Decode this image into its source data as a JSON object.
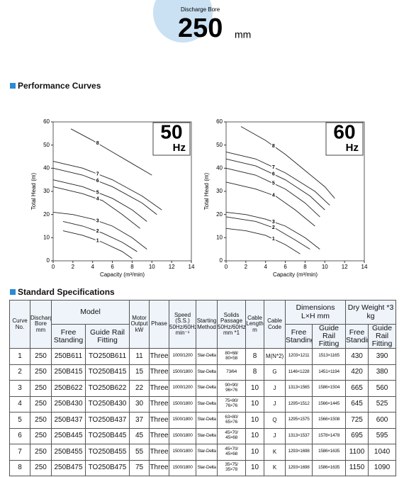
{
  "header": {
    "label": "Discharge Bore",
    "value": "250",
    "unit": "mm"
  },
  "performance_title": "Performance Curves",
  "chart_data": [
    {
      "type": "line",
      "title": "50",
      "subtitle": "Hz",
      "x_label": "Capacity (m³/min)",
      "y_label": "Total Head (m)",
      "xlim": [
        0,
        14
      ],
      "xticks": [
        0,
        2,
        4,
        6,
        8,
        10,
        12,
        14
      ],
      "ylim": [
        0,
        60
      ],
      "yticks": [
        0,
        10,
        20,
        30,
        40,
        50,
        60
      ],
      "color": "#222222",
      "series": [
        {
          "name": "1",
          "x": [
            1,
            3,
            5,
            7,
            8
          ],
          "values": [
            13,
            11,
            8,
            4,
            1
          ]
        },
        {
          "name": "2",
          "x": [
            1,
            3,
            5,
            7,
            8.5
          ],
          "values": [
            17,
            15,
            12,
            8,
            4
          ]
        },
        {
          "name": "3",
          "x": [
            0,
            2,
            4,
            6,
            8,
            9.5
          ],
          "values": [
            21,
            20,
            18,
            15,
            10,
            5
          ]
        },
        {
          "name": "4",
          "x": [
            0,
            3,
            5,
            7,
            8.8
          ],
          "values": [
            32,
            29,
            26,
            20,
            14
          ]
        },
        {
          "name": "5",
          "x": [
            0,
            3,
            6,
            8,
            9.5
          ],
          "values": [
            35,
            32,
            27,
            22,
            17
          ]
        },
        {
          "name": "6",
          "x": [
            0,
            3,
            6,
            9,
            10.5
          ],
          "values": [
            40,
            37,
            32,
            25,
            20
          ]
        },
        {
          "name": "7",
          "x": [
            0,
            3,
            6,
            9,
            11
          ],
          "values": [
            43,
            40,
            35,
            28,
            22
          ]
        },
        {
          "name": "8",
          "x": [
            1.8,
            4,
            6,
            8,
            10
          ],
          "values": [
            57,
            52,
            47,
            42,
            37
          ]
        }
      ]
    },
    {
      "type": "line",
      "title": "60",
      "subtitle": "Hz",
      "x_label": "Capacity (m³/min)",
      "y_label": "Total Head (m)",
      "xlim": [
        0,
        14
      ],
      "xticks": [
        0,
        2,
        4,
        6,
        8,
        10,
        12,
        14
      ],
      "ylim": [
        0,
        60
      ],
      "yticks": [
        0,
        10,
        20,
        30,
        40,
        50,
        60
      ],
      "color": "#222222",
      "series": [
        {
          "name": "1",
          "x": [
            0,
            2,
            4,
            6,
            7.5
          ],
          "values": [
            14,
            13,
            11,
            7,
            3
          ]
        },
        {
          "name": "2",
          "x": [
            0,
            3,
            5,
            7,
            8.5
          ],
          "values": [
            19,
            17,
            14,
            9,
            5
          ]
        },
        {
          "name": "3",
          "x": [
            0,
            2,
            4,
            6,
            8,
            9.5
          ],
          "values": [
            21,
            20,
            18,
            15,
            10,
            5
          ]
        },
        {
          "name": "4",
          "x": [
            0,
            3,
            5,
            7,
            9
          ],
          "values": [
            34,
            31,
            28,
            22,
            15
          ]
        },
        {
          "name": "5",
          "x": [
            0,
            3,
            6,
            8,
            9.5
          ],
          "values": [
            40,
            37,
            31,
            25,
            19
          ]
        },
        {
          "name": "6",
          "x": [
            0,
            3,
            6,
            8.5,
            10
          ],
          "values": [
            44,
            41,
            35,
            28,
            22
          ]
        },
        {
          "name": "7",
          "x": [
            0,
            3,
            6,
            9,
            10.5
          ],
          "values": [
            47,
            44,
            38,
            30,
            24
          ]
        },
        {
          "name": "8",
          "x": [
            1.5,
            4,
            6,
            8,
            10,
            11
          ],
          "values": [
            58,
            52,
            46,
            39,
            32,
            27
          ]
        }
      ]
    }
  ],
  "specs": {
    "title": "Standard Specifications",
    "header": [
      {
        "text": "Curve\nNo."
      },
      {
        "text": "Discharge\nBore\nmm"
      },
      {
        "text": "Model",
        "sub": [
          "Free\nStanding",
          "Guide Rail\nFitting"
        ]
      },
      {
        "text": "Motor\nOutput\nkW"
      },
      {
        "text": "Phase"
      },
      {
        "text": "Speed\n(S.S.)\n50Hz/60Hz\nmin⁻¹"
      },
      {
        "text": "Starting\nMethod"
      },
      {
        "text": "Solids\nPassage\n50Hz/60Hz\nmm *1"
      },
      {
        "text": "Cable\nLength\nm"
      },
      {
        "text": "Cable\nCode"
      },
      {
        "text": "Dimensions\nL×H  mm",
        "sub": [
          "Free\nStanding",
          "Guide Rail\nFitting"
        ]
      },
      {
        "text": "Dry Weight *3\nkg",
        "sub": [
          "Free\nStanding",
          "Guide Rail\nFitting"
        ]
      }
    ],
    "rows": [
      [
        "1",
        "250",
        "250B611",
        "TO250B611",
        "11",
        "Three",
        "1000/1200",
        "Star-Delta",
        "80×68/\n80×58",
        "8",
        "M(N*2)",
        "1203×1211",
        "1513×1165",
        "430",
        "390"
      ],
      [
        "2",
        "250",
        "250B415",
        "TO250B415",
        "15",
        "Three",
        "1500/1800",
        "Star-Delta",
        "73/64",
        "8",
        "G",
        "1146×1228",
        "1451×1194",
        "420",
        "380"
      ],
      [
        "3",
        "250",
        "250B622",
        "TO250B622",
        "22",
        "Three",
        "1000/1200",
        "Star-Delta",
        "90×90/\n96×76",
        "10",
        "J",
        "1313×1565",
        "1586×1504",
        "665",
        "560"
      ],
      [
        "4",
        "250",
        "250B430",
        "TO250B430",
        "30",
        "Three",
        "1500/1800",
        "Star-Delta",
        "75×80/\n76×76",
        "10",
        "J",
        "1295×1512",
        "1566×1445",
        "645",
        "525"
      ],
      [
        "5",
        "250",
        "250B437",
        "TO250B437",
        "37",
        "Three",
        "1500/1800",
        "Star-Delta",
        "63×80/\n65×76",
        "10",
        "Q",
        "1295×1575",
        "1566×1508",
        "725",
        "600"
      ],
      [
        "6",
        "250",
        "250B445",
        "TO250B445",
        "45",
        "Three",
        "1500/1800",
        "Star-Delta",
        "45×70/\n45×68",
        "10",
        "J",
        "1313×1537",
        "1578×1478",
        "695",
        "595"
      ],
      [
        "7",
        "250",
        "250B455",
        "TO250B455",
        "55",
        "Three",
        "1500/1800",
        "Star-Delta",
        "45×70/\n45×68",
        "10",
        "K",
        "1293×1698",
        "1586×1635",
        "1100",
        "1040"
      ],
      [
        "8",
        "250",
        "250B475",
        "TO250B475",
        "75",
        "Three",
        "1500/1800",
        "Star-Delta",
        "35×75/\n35×78",
        "10",
        "K",
        "1293×1698",
        "1586×1635",
        "1150",
        "1090"
      ]
    ]
  }
}
